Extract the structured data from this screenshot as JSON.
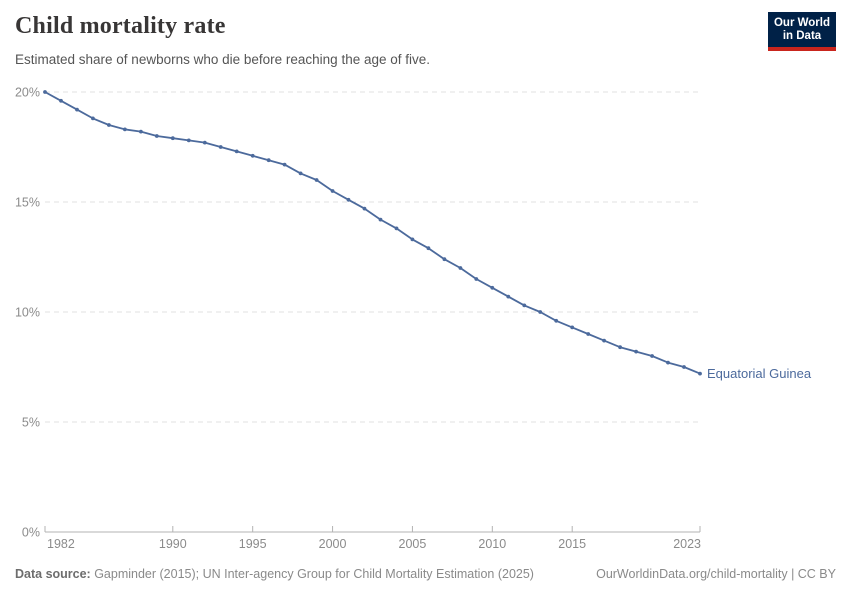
{
  "header": {
    "title": "Child mortality rate",
    "subtitle": "Estimated share of newborns who die before reaching the age of five.",
    "logo": {
      "line1": "Our World",
      "line2": "in Data"
    }
  },
  "chart_data": {
    "type": "line",
    "title": "Child mortality rate",
    "xlabel": "",
    "ylabel": "",
    "ylim": [
      0,
      20
    ],
    "yticks": [
      0,
      5,
      10,
      15,
      20
    ],
    "ytick_labels": [
      "0%",
      "5%",
      "10%",
      "15%",
      "20%"
    ],
    "xticks": [
      1982,
      1990,
      1995,
      2000,
      2005,
      2010,
      2015,
      2023
    ],
    "grid": "horizontal-dashed",
    "legend_position": "end-of-line-label",
    "series": [
      {
        "name": "Equatorial Guinea",
        "color": "#4C6A9C",
        "x": [
          1982,
          1983,
          1984,
          1985,
          1986,
          1987,
          1988,
          1989,
          1990,
          1991,
          1992,
          1993,
          1994,
          1995,
          1996,
          1997,
          1998,
          1999,
          2000,
          2001,
          2002,
          2003,
          2004,
          2005,
          2006,
          2007,
          2008,
          2009,
          2010,
          2011,
          2012,
          2013,
          2014,
          2015,
          2016,
          2017,
          2018,
          2019,
          2020,
          2021,
          2022,
          2023
        ],
        "values": [
          20.0,
          19.6,
          19.2,
          18.8,
          18.5,
          18.3,
          18.2,
          18.0,
          17.9,
          17.8,
          17.7,
          17.5,
          17.3,
          17.1,
          16.9,
          16.7,
          16.3,
          16.0,
          15.5,
          15.1,
          14.7,
          14.2,
          13.8,
          13.3,
          12.9,
          12.4,
          12.0,
          11.5,
          11.1,
          10.7,
          10.3,
          10.0,
          9.6,
          9.3,
          9.0,
          8.7,
          8.4,
          8.2,
          8.0,
          7.7,
          7.5,
          7.2
        ]
      }
    ]
  },
  "footer": {
    "source_label": "Data source:",
    "source_text": " Gapminder (2015); UN Inter-agency Group for Child Mortality Estimation (2025)",
    "link_text": "OurWorldinData.org/child-mortality | CC BY"
  },
  "colors": {
    "line": "#4C6A9C",
    "title_text": "#383636",
    "subtitle_text": "#555555",
    "axis_text": "#8b8b8b",
    "gridline": "#e0e0e0",
    "axis_line": "#b3b3b3",
    "logo_bg": "#002147",
    "logo_accent": "#C9251D"
  }
}
